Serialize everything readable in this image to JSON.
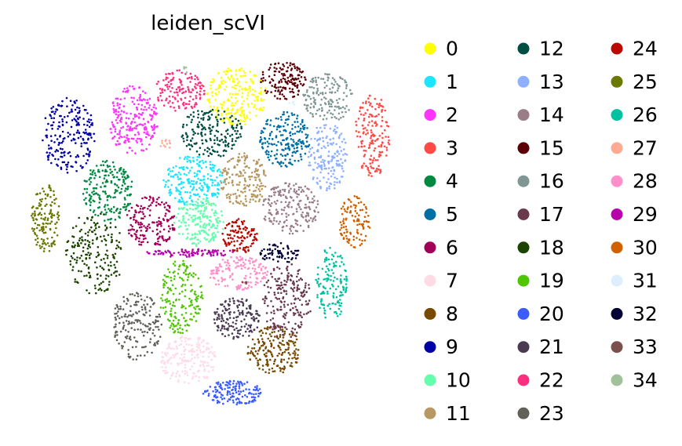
{
  "chart_data": {
    "type": "scatter",
    "title": "leiden_scVI",
    "xlabel": "",
    "ylabel": "",
    "grid": false,
    "axes_visible": false,
    "legend_placement": "right",
    "legend_columns": 3,
    "clusters": [
      {
        "label": "0",
        "color": "#ffff00",
        "cx": 0.575,
        "cy": 0.885,
        "rx": 0.085,
        "ry": 0.085,
        "n": 230
      },
      {
        "label": "1",
        "color": "#1ce6ff",
        "cx": 0.455,
        "cy": 0.64,
        "rx": 0.085,
        "ry": 0.075,
        "n": 220
      },
      {
        "label": "2",
        "color": "#ff34ff",
        "cx": 0.285,
        "cy": 0.815,
        "rx": 0.07,
        "ry": 0.1,
        "n": 230
      },
      {
        "label": "3",
        "color": "#ff4a46",
        "cx": 0.955,
        "cy": 0.77,
        "rx": 0.05,
        "ry": 0.12,
        "n": 170
      },
      {
        "label": "4",
        "color": "#008941",
        "cx": 0.215,
        "cy": 0.61,
        "rx": 0.07,
        "ry": 0.09,
        "n": 200
      },
      {
        "label": "5",
        "color": "#006fa6",
        "cx": 0.71,
        "cy": 0.76,
        "rx": 0.07,
        "ry": 0.08,
        "n": 200
      },
      {
        "label": "6",
        "color": "#a30059",
        "cx": 0.335,
        "cy": 0.52,
        "rx": 0.07,
        "ry": 0.075,
        "n": 170
      },
      {
        "label": "7",
        "color": "#ffdbe5",
        "cx": 0.44,
        "cy": 0.12,
        "rx": 0.08,
        "ry": 0.07,
        "n": 190
      },
      {
        "label": "8",
        "color": "#7a4900",
        "cx": 0.68,
        "cy": 0.15,
        "rx": 0.075,
        "ry": 0.07,
        "n": 190
      },
      {
        "label": "9",
        "color": "#0000a6",
        "cx": 0.105,
        "cy": 0.77,
        "rx": 0.075,
        "ry": 0.11,
        "n": 210
      },
      {
        "label": "10",
        "color": "#63ffac",
        "cx": 0.47,
        "cy": 0.52,
        "rx": 0.07,
        "ry": 0.07,
        "n": 190
      },
      {
        "label": "11",
        "color": "#b79762",
        "cx": 0.595,
        "cy": 0.64,
        "rx": 0.065,
        "ry": 0.08,
        "n": 180
      },
      {
        "label": "12",
        "color": "#004d43",
        "cx": 0.505,
        "cy": 0.78,
        "rx": 0.085,
        "ry": 0.075,
        "n": 180
      },
      {
        "label": "13",
        "color": "#8fb0ff",
        "cx": 0.83,
        "cy": 0.71,
        "rx": 0.055,
        "ry": 0.1,
        "n": 170
      },
      {
        "label": "14",
        "color": "#997d87",
        "cx": 0.725,
        "cy": 0.56,
        "rx": 0.08,
        "ry": 0.075,
        "n": 190
      },
      {
        "label": "15",
        "color": "#5a0007",
        "cx": 0.705,
        "cy": 0.93,
        "rx": 0.065,
        "ry": 0.055,
        "n": 140
      },
      {
        "label": "16",
        "color": "#809693",
        "cx": 0.83,
        "cy": 0.88,
        "rx": 0.07,
        "ry": 0.07,
        "n": 150
      },
      {
        "label": "17",
        "color": "#6a3a4c",
        "cx": 0.715,
        "cy": 0.29,
        "rx": 0.07,
        "ry": 0.11,
        "n": 200
      },
      {
        "label": "18",
        "color": "#1b4400",
        "cx": 0.175,
        "cy": 0.43,
        "rx": 0.085,
        "ry": 0.12,
        "n": 190
      },
      {
        "label": "19",
        "color": "#4fc601",
        "cx": 0.42,
        "cy": 0.3,
        "rx": 0.06,
        "ry": 0.11,
        "n": 180
      },
      {
        "label": "20",
        "color": "#3b5dff",
        "cx": 0.565,
        "cy": 0.025,
        "rx": 0.085,
        "ry": 0.035,
        "n": 150
      },
      {
        "label": "21",
        "color": "#4a3b53",
        "cx": 0.575,
        "cy": 0.24,
        "rx": 0.065,
        "ry": 0.06,
        "n": 160
      },
      {
        "label": "22",
        "color": "#ff2f80",
        "cx": 0.415,
        "cy": 0.9,
        "rx": 0.07,
        "ry": 0.06,
        "n": 140
      },
      {
        "label": "23",
        "color": "#61615a",
        "cx": 0.295,
        "cy": 0.22,
        "rx": 0.07,
        "ry": 0.1,
        "n": 180
      },
      {
        "label": "24",
        "color": "#ba0900",
        "cx": 0.585,
        "cy": 0.48,
        "rx": 0.05,
        "ry": 0.05,
        "n": 110
      },
      {
        "label": "25",
        "color": "#6b7900",
        "cx": 0.04,
        "cy": 0.53,
        "rx": 0.04,
        "ry": 0.1,
        "n": 140
      },
      {
        "label": "26",
        "color": "#00c2a0",
        "cx": 0.84,
        "cy": 0.34,
        "rx": 0.045,
        "ry": 0.11,
        "n": 140
      },
      {
        "label": "27",
        "color": "#ffaa92",
        "cx": 0.375,
        "cy": 0.745,
        "rx": 0.015,
        "ry": 0.02,
        "n": 12
      },
      {
        "label": "28",
        "color": "#ff90c9",
        "cx": 0.58,
        "cy": 0.37,
        "rx": 0.085,
        "ry": 0.05,
        "n": 150
      },
      {
        "label": "29",
        "color": "#b903aa",
        "cx": 0.45,
        "cy": 0.43,
        "rx": 0.13,
        "ry": 0.012,
        "n": 90
      },
      {
        "label": "30",
        "color": "#d16100",
        "cx": 0.905,
        "cy": 0.52,
        "rx": 0.045,
        "ry": 0.075,
        "n": 110
      },
      {
        "label": "31",
        "color": "#ddefff",
        "cx": 0.73,
        "cy": 0.86,
        "rx": 0.01,
        "ry": 0.01,
        "n": 4
      },
      {
        "label": "32",
        "color": "#000035",
        "cx": 0.695,
        "cy": 0.43,
        "rx": 0.055,
        "ry": 0.03,
        "n": 70
      },
      {
        "label": "33",
        "color": "#7b4f4b",
        "cx": 0.6,
        "cy": 0.35,
        "rx": 0.01,
        "ry": 0.01,
        "n": 4
      },
      {
        "label": "34",
        "color": "#a1c299",
        "cx": 0.43,
        "cy": 0.96,
        "rx": 0.01,
        "ry": 0.01,
        "n": 4
      }
    ]
  }
}
